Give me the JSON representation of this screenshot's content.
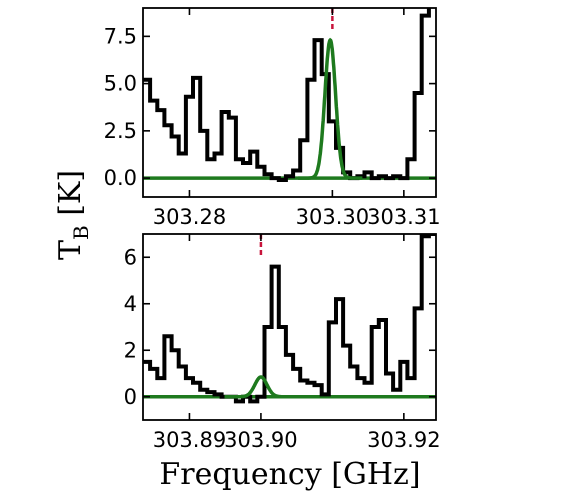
{
  "figure": {
    "ylabel_main": "T",
    "ylabel_sub": "B",
    "ylabel_unit": " [K]",
    "xlabel": "Frequency [GHz]"
  },
  "chart_data": [
    {
      "type": "line",
      "xlabel": "",
      "ylabel": "T_B [K]",
      "xlim": [
        303.2735,
        303.3145
      ],
      "ylim": [
        -1.0,
        9.0
      ],
      "xticks": [
        303.28,
        303.3,
        303.31
      ],
      "xtick_labels": [
        "303.28",
        "303.30",
        "303.31"
      ],
      "yticks": [
        0.0,
        2.5,
        5.0,
        7.5
      ],
      "ytick_labels": [
        "0.0",
        "2.5",
        "5.0",
        "7.5"
      ],
      "marker_x": 303.3,
      "series": [
        {
          "style": "steps",
          "color": "#000000",
          "x": [
            303.2735,
            303.2745,
            303.2755,
            303.2765,
            303.2775,
            303.2785,
            303.2795,
            303.2805,
            303.2815,
            303.2825,
            303.2835,
            303.2845,
            303.2855,
            303.2865,
            303.2875,
            303.2885,
            303.2895,
            303.2905,
            303.2915,
            303.2925,
            303.2935,
            303.2945,
            303.2955,
            303.2965,
            303.2975,
            303.2985,
            303.2995,
            303.3005,
            303.3015,
            303.3025,
            303.3035,
            303.3045,
            303.3055,
            303.3065,
            303.3075,
            303.3085,
            303.3095,
            303.3105,
            303.3115,
            303.3125,
            303.3135
          ],
          "y": [
            5.2,
            4.1,
            3.6,
            2.8,
            2.2,
            1.3,
            4.3,
            5.3,
            2.5,
            1.0,
            1.3,
            3.5,
            3.2,
            1.0,
            0.8,
            1.4,
            0.6,
            0.2,
            0.0,
            -0.1,
            0.1,
            0.4,
            2.0,
            5.2,
            7.3,
            5.5,
            3.0,
            1.6,
            0.3,
            0.0,
            0.1,
            0.3,
            0.0,
            0.1,
            0.0,
            0.1,
            0.0,
            1.0,
            4.5,
            8.6,
            9.2
          ]
        },
        {
          "style": "gaussian",
          "color": "#1e7a1e",
          "amplitude": 7.3,
          "center": 303.2997,
          "sigma": 0.00075
        }
      ]
    },
    {
      "type": "line",
      "xlabel": "Frequency [GHz]",
      "ylabel": "T_B [K]",
      "xlim": [
        303.8835,
        303.9245
      ],
      "ylim": [
        -1.0,
        7.0
      ],
      "xticks": [
        303.89,
        303.9,
        303.92
      ],
      "xtick_labels": [
        "303.89",
        "303.90",
        "303.92"
      ],
      "yticks": [
        0,
        2,
        4,
        6
      ],
      "ytick_labels": [
        "0",
        "2",
        "4",
        "6"
      ],
      "marker_x": 303.9,
      "series": [
        {
          "style": "steps",
          "color": "#000000",
          "x": [
            303.8835,
            303.8845,
            303.8855,
            303.8865,
            303.8875,
            303.8885,
            303.8895,
            303.8905,
            303.8915,
            303.8925,
            303.8935,
            303.8945,
            303.8955,
            303.8965,
            303.8975,
            303.8985,
            303.8995,
            303.9005,
            303.9015,
            303.9025,
            303.9035,
            303.9045,
            303.9055,
            303.9065,
            303.9075,
            303.9085,
            303.9095,
            303.9105,
            303.9115,
            303.9125,
            303.9135,
            303.9145,
            303.9155,
            303.9165,
            303.9175,
            303.9185,
            303.9195,
            303.9205,
            303.9215,
            303.9225,
            303.9235
          ],
          "y": [
            1.5,
            1.2,
            0.8,
            2.6,
            2.0,
            1.3,
            0.8,
            0.6,
            0.3,
            0.2,
            0.1,
            0.0,
            0.0,
            -0.2,
            0.0,
            -0.2,
            0.0,
            3.0,
            5.6,
            3.0,
            1.8,
            1.2,
            0.7,
            0.6,
            0.5,
            0.1,
            3.2,
            4.2,
            2.2,
            1.3,
            0.8,
            0.6,
            3.0,
            3.3,
            1.0,
            0.3,
            1.5,
            0.8,
            3.8,
            6.9,
            7.0
          ]
        },
        {
          "style": "gaussian",
          "color": "#1e7a1e",
          "amplitude": 0.85,
          "center": 303.9,
          "sigma": 0.00085
        }
      ]
    }
  ]
}
